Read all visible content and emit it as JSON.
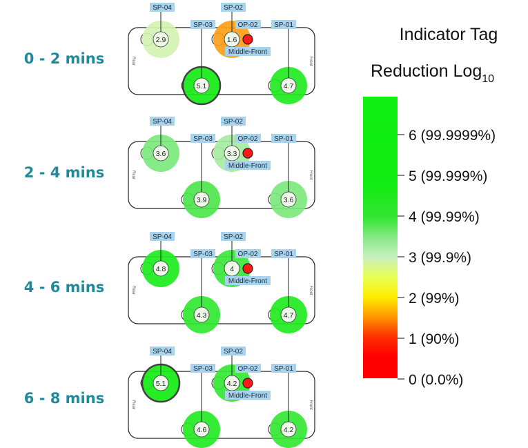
{
  "legend": {
    "title_line1": "Indicator Tag",
    "title_line2_main": "Reduction Log",
    "title_line2_sub": "10",
    "ticks": [
      {
        "value": 6,
        "label": "6 (99.9999%)"
      },
      {
        "value": 5,
        "label": "5 (99.999%)"
      },
      {
        "value": 4,
        "label": "4 (99.99%)"
      },
      {
        "value": 3,
        "label": "3 (99.9%)"
      },
      {
        "value": 2,
        "label": "2 (99%)"
      },
      {
        "value": 1,
        "label": "1 (90%)"
      },
      {
        "value": 0,
        "label": "0 (0.0%)"
      }
    ],
    "range": [
      0,
      7
    ]
  },
  "chamber": {
    "rear_label": "Rear",
    "front_label": "Front"
  },
  "panels": [
    {
      "time": "0 - 2 mins",
      "points": [
        {
          "tag": "SP-04",
          "value": 2.9,
          "highlight": false
        },
        {
          "tag": "SP-02",
          "value": 1.6,
          "highlight": false
        },
        {
          "tag": "SP-03",
          "value": 5.1,
          "highlight": true
        },
        {
          "tag": "SP-01",
          "value": 4.7,
          "highlight": false
        }
      ],
      "op_tag": "OP-02",
      "op_label": "Middle-Front"
    },
    {
      "time": "2 - 4 mins",
      "points": [
        {
          "tag": "SP-04",
          "value": 3.6,
          "highlight": false
        },
        {
          "tag": "SP-02",
          "value": 3.3,
          "highlight": false
        },
        {
          "tag": "SP-03",
          "value": 3.9,
          "highlight": false
        },
        {
          "tag": "SP-01",
          "value": 3.6,
          "highlight": false
        }
      ],
      "op_tag": "OP-02",
      "op_label": "Middle-Front"
    },
    {
      "time": "4 - 6 mins",
      "points": [
        {
          "tag": "SP-04",
          "value": 4.8,
          "highlight": false
        },
        {
          "tag": "SP-02",
          "value": 4,
          "highlight": false
        },
        {
          "tag": "SP-03",
          "value": 4.3,
          "highlight": false
        },
        {
          "tag": "SP-01",
          "value": 4.7,
          "highlight": false
        }
      ],
      "op_tag": "OP-02",
      "op_label": "Middle-Front"
    },
    {
      "time": "6 - 8 mins",
      "points": [
        {
          "tag": "SP-04",
          "value": 5.1,
          "highlight": true
        },
        {
          "tag": "SP-02",
          "value": 4.2,
          "highlight": false
        },
        {
          "tag": "SP-03",
          "value": 4.6,
          "highlight": false
        },
        {
          "tag": "SP-01",
          "value": 4.2,
          "highlight": false
        }
      ],
      "op_tag": "OP-02",
      "op_label": "Middle-Front"
    }
  ]
}
